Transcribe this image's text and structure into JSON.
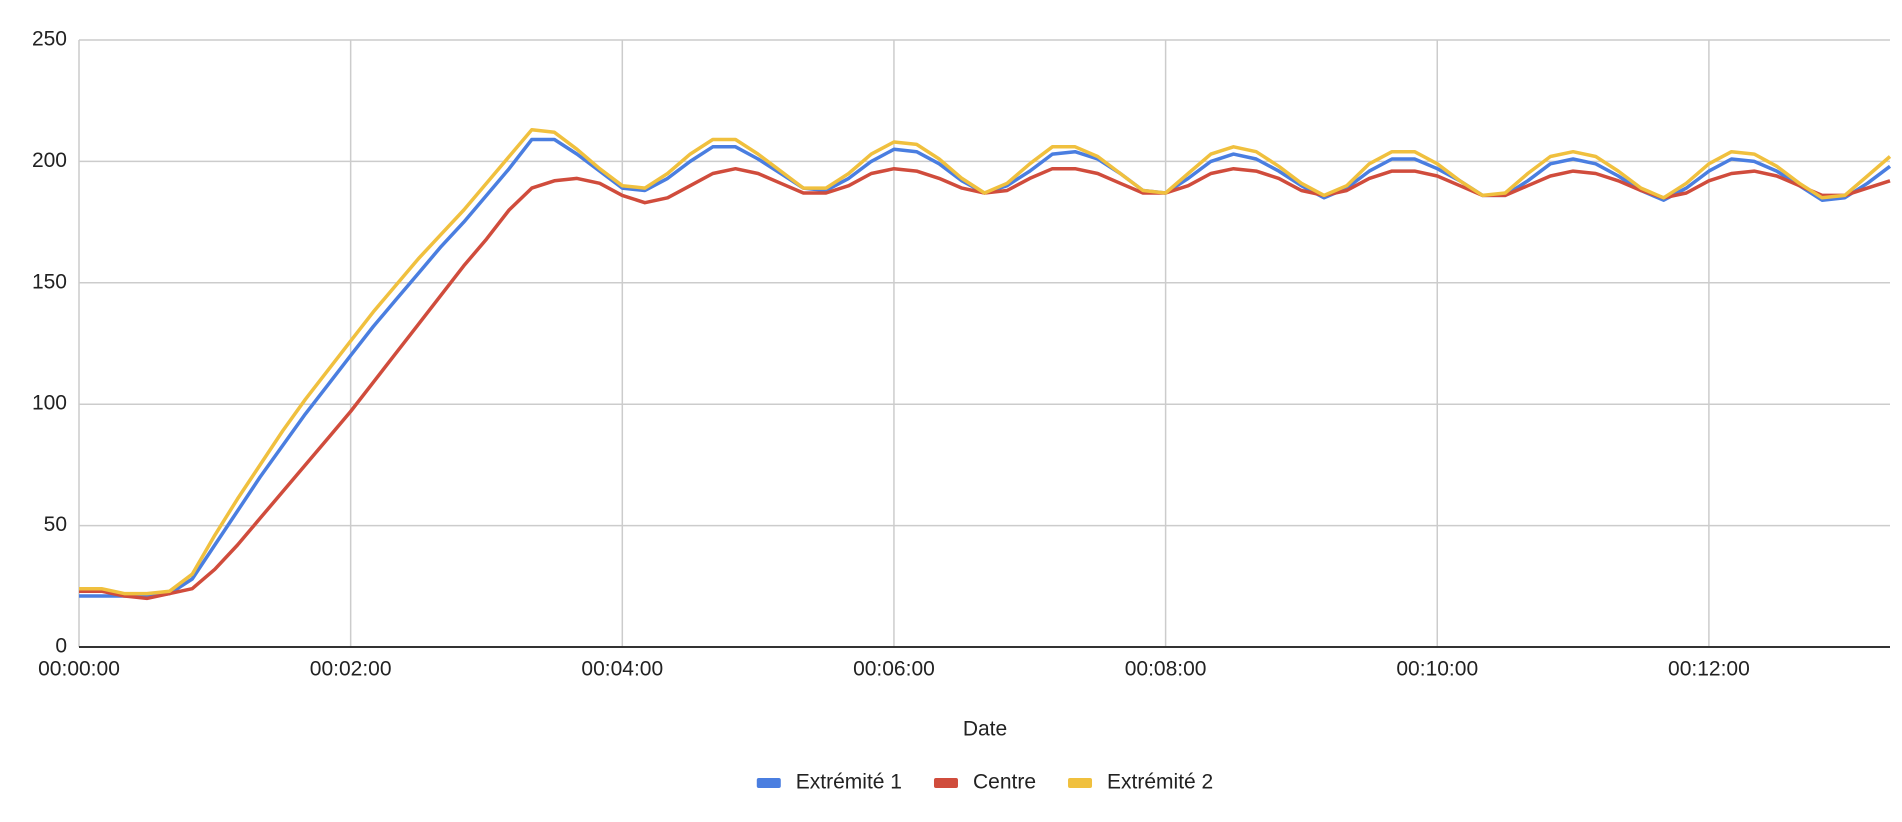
{
  "chart_data": {
    "type": "line",
    "x_label": "Date",
    "x": [
      0,
      10,
      20,
      30,
      40,
      50,
      60,
      70,
      80,
      90,
      100,
      110,
      120,
      130,
      140,
      150,
      160,
      170,
      180,
      190,
      200,
      210,
      220,
      230,
      240,
      250,
      260,
      270,
      280,
      290,
      300,
      310,
      320,
      330,
      340,
      350,
      360,
      370,
      380,
      390,
      400,
      410,
      420,
      430,
      440,
      450,
      460,
      470,
      480,
      490,
      500,
      510,
      520,
      530,
      540,
      550,
      560,
      570,
      580,
      590,
      600,
      610,
      620,
      630,
      640,
      650,
      660,
      670,
      680,
      690,
      700,
      710,
      720,
      730,
      740,
      750,
      760,
      770,
      780,
      790,
      800
    ],
    "series": [
      {
        "name": "Extrémité 1",
        "color": "#4a7ee0",
        "values": [
          21,
          21,
          21,
          21,
          22,
          28,
          42,
          56,
          70,
          83,
          96,
          108,
          120,
          132,
          143,
          154,
          165,
          175,
          186,
          197,
          209,
          209,
          203,
          196,
          189,
          188,
          193,
          200,
          206,
          206,
          201,
          195,
          189,
          188,
          193,
          200,
          205,
          204,
          199,
          192,
          187,
          190,
          196,
          203,
          204,
          201,
          195,
          188,
          187,
          193,
          200,
          203,
          201,
          196,
          190,
          185,
          189,
          196,
          201,
          201,
          197,
          192,
          186,
          186,
          192,
          199,
          201,
          199,
          194,
          188,
          184,
          189,
          196,
          201,
          200,
          196,
          190,
          184,
          185,
          191,
          198
        ]
      },
      {
        "name": "Centre",
        "color": "#d04c3c",
        "values": [
          23,
          23,
          21,
          20,
          22,
          24,
          32,
          42,
          53,
          64,
          75,
          86,
          97,
          109,
          121,
          133,
          145,
          157,
          168,
          180,
          189,
          192,
          193,
          191,
          186,
          183,
          185,
          190,
          195,
          197,
          195,
          191,
          187,
          187,
          190,
          195,
          197,
          196,
          193,
          189,
          187,
          188,
          193,
          197,
          197,
          195,
          191,
          187,
          187,
          190,
          195,
          197,
          196,
          193,
          188,
          186,
          188,
          193,
          196,
          196,
          194,
          190,
          186,
          186,
          190,
          194,
          196,
          195,
          192,
          188,
          185,
          187,
          192,
          195,
          196,
          194,
          190,
          186,
          186,
          189,
          192
        ]
      },
      {
        "name": "Extrémité 2",
        "color": "#f0c03e",
        "values": [
          24,
          24,
          22,
          22,
          23,
          30,
          46,
          61,
          75,
          89,
          102,
          114,
          126,
          138,
          149,
          160,
          170,
          180,
          191,
          202,
          213,
          212,
          205,
          197,
          190,
          189,
          195,
          203,
          209,
          209,
          203,
          196,
          189,
          189,
          195,
          203,
          208,
          207,
          201,
          193,
          187,
          191,
          199,
          206,
          206,
          202,
          195,
          188,
          187,
          195,
          203,
          206,
          204,
          198,
          191,
          186,
          190,
          199,
          204,
          204,
          199,
          192,
          186,
          187,
          195,
          202,
          204,
          202,
          196,
          189,
          185,
          191,
          199,
          204,
          203,
          198,
          191,
          185,
          186,
          194,
          202
        ]
      }
    ],
    "xlim": [
      0,
      800
    ],
    "xticks": [
      {
        "value": 0,
        "label": "00:00:00"
      },
      {
        "value": 120,
        "label": "00:02:00"
      },
      {
        "value": 240,
        "label": "00:04:00"
      },
      {
        "value": 360,
        "label": "00:06:00"
      },
      {
        "value": 480,
        "label": "00:08:00"
      },
      {
        "value": 600,
        "label": "00:10:00"
      },
      {
        "value": 720,
        "label": "00:12:00"
      }
    ],
    "ylim": [
      0,
      250
    ],
    "yticks": [
      0,
      50,
      100,
      150,
      200,
      250
    ],
    "grid": true,
    "legend": "bottom"
  }
}
